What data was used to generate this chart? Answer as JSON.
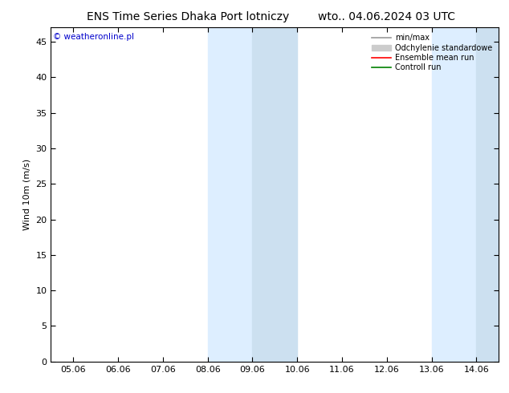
{
  "title_left": "ENS Time Series Dhaka Port lotniczy",
  "title_right": "wto.. 04.06.2024 03 UTC",
  "ylabel": "Wind 10m (m/s)",
  "watermark": "© weatheronline.pl",
  "ylim": [
    0,
    47
  ],
  "yticks": [
    0,
    5,
    10,
    15,
    20,
    25,
    30,
    35,
    40,
    45
  ],
  "bg_color": "#ffffff",
  "plot_bg_color": "#ffffff",
  "shaded_bands": [
    {
      "xstart": 3.0,
      "xend": 4.0,
      "color": "#ddeeff"
    },
    {
      "xstart": 4.0,
      "xend": 5.0,
      "color": "#cce0f0"
    },
    {
      "xstart": 8.0,
      "xend": 9.0,
      "color": "#ddeeff"
    },
    {
      "xstart": 9.0,
      "xend": 9.5,
      "color": "#cce0f0"
    }
  ],
  "legend_items": [
    {
      "label": "min/max",
      "color": "#999999",
      "lw": 1.2,
      "linestyle": "-"
    },
    {
      "label": "Odchylenie standardowe",
      "color": "#cccccc",
      "lw": 5,
      "linestyle": "-"
    },
    {
      "label": "Ensemble mean run",
      "color": "#ff0000",
      "lw": 1.2,
      "linestyle": "-"
    },
    {
      "label": "Controll run",
      "color": "#008000",
      "lw": 1.2,
      "linestyle": "-"
    }
  ],
  "xtick_labels": [
    "05.06",
    "06.06",
    "07.06",
    "08.06",
    "09.06",
    "10.06",
    "11.06",
    "12.06",
    "13.06",
    "14.06"
  ],
  "xtick_positions": [
    0,
    1,
    2,
    3,
    4,
    5,
    6,
    7,
    8,
    9
  ],
  "title_fontsize": 10,
  "axis_fontsize": 8,
  "watermark_color": "#0000cc",
  "border_color": "#000000"
}
